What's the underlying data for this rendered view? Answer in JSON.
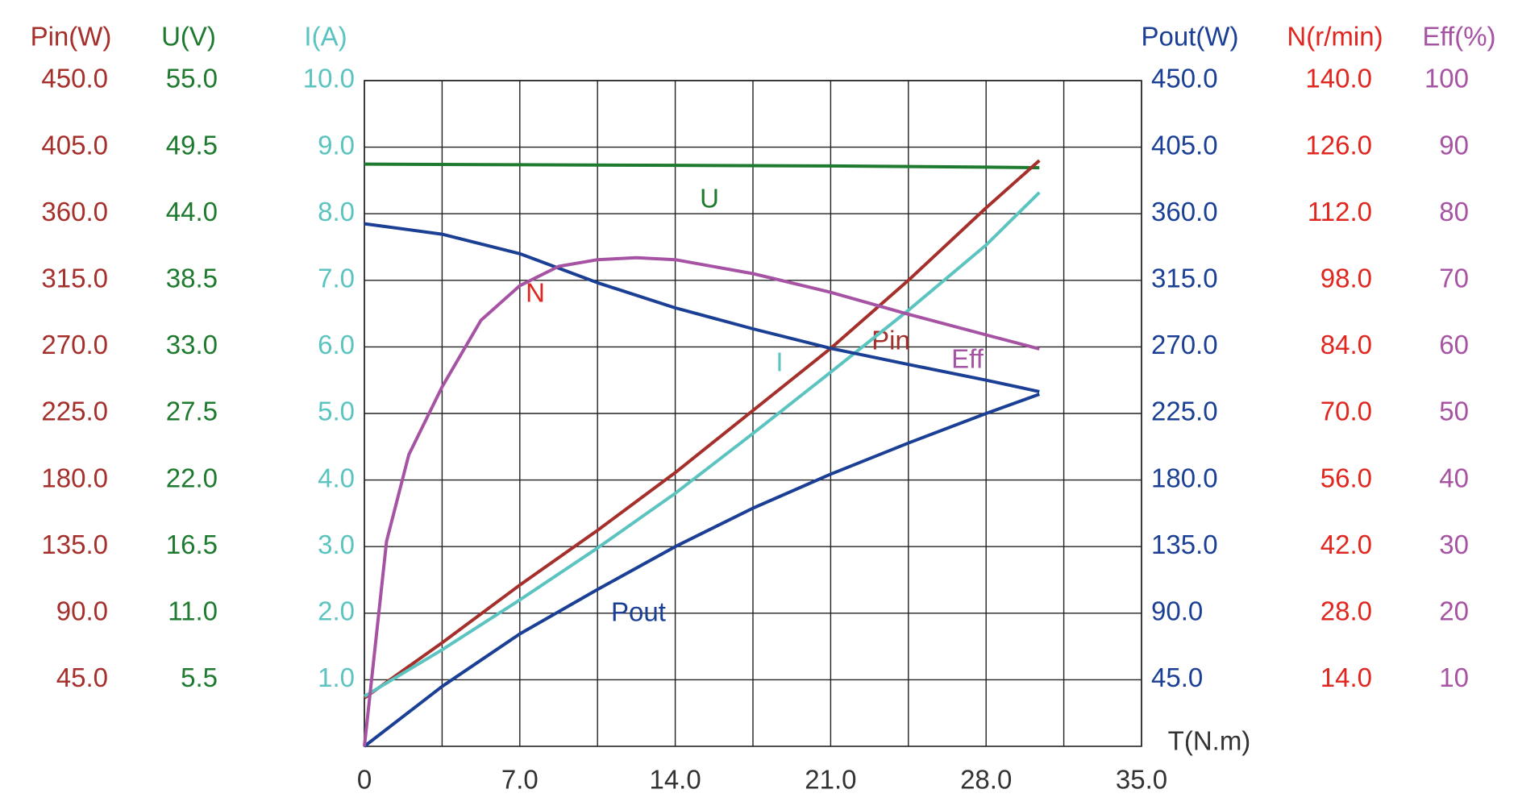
{
  "chart_data": {
    "type": "line",
    "x_label": "T(N.m)",
    "xlim": [
      0,
      35
    ],
    "xticks": [
      0,
      {
        "value": 7,
        "label": "7.0"
      },
      {
        "value": 14,
        "label": "14.0"
      },
      {
        "value": 21,
        "label": "21.0"
      },
      {
        "value": 28,
        "label": "28.0"
      },
      {
        "value": 35,
        "label": "35.0"
      }
    ],
    "minor_xticks": [
      3.5,
      10.5,
      17.5,
      24.5,
      31.5
    ],
    "grid": true,
    "axes": [
      {
        "label": "Pin(W)",
        "side": "left",
        "color": "#a52f2b",
        "lim": [
          0,
          450
        ],
        "ticks": [
          {
            "value": 45,
            "label": "45.0"
          },
          {
            "value": 90,
            "label": "90.0"
          },
          {
            "value": 135,
            "label": "135.0"
          },
          {
            "value": 180,
            "label": "180.0"
          },
          {
            "value": 225,
            "label": "225.0"
          },
          {
            "value": 270,
            "label": "270.0"
          },
          {
            "value": 315,
            "label": "315.0"
          },
          {
            "value": 360,
            "label": "360.0"
          },
          {
            "value": 405,
            "label": "405.0"
          },
          {
            "value": 450,
            "label": "450.0"
          }
        ]
      },
      {
        "label": "U(V)",
        "side": "left",
        "color": "#1e7a2e",
        "lim": [
          0,
          55
        ],
        "ticks": [
          5.5,
          {
            "value": 11,
            "label": "11.0"
          },
          16.5,
          {
            "value": 22,
            "label": "22.0"
          },
          27.5,
          {
            "value": 33,
            "label": "33.0"
          },
          38.5,
          {
            "value": 44,
            "label": "44.0"
          },
          49.5,
          {
            "value": 55,
            "label": "55.0"
          }
        ]
      },
      {
        "label": "I(A)",
        "side": "left",
        "color": "#5bc4c0",
        "lim": [
          0,
          10
        ],
        "ticks": [
          {
            "value": 1,
            "label": "1.0"
          },
          {
            "value": 2,
            "label": "2.0"
          },
          {
            "value": 3,
            "label": "3.0"
          },
          {
            "value": 4,
            "label": "4.0"
          },
          {
            "value": 5,
            "label": "5.0"
          },
          {
            "value": 6,
            "label": "6.0"
          },
          {
            "value": 7,
            "label": "7.0"
          },
          {
            "value": 8,
            "label": "8.0"
          },
          {
            "value": 9,
            "label": "9.0"
          },
          {
            "value": 10,
            "label": "10.0"
          }
        ]
      },
      {
        "label": "Pout(W)",
        "side": "right",
        "color": "#1a3f94",
        "lim": [
          0,
          450
        ],
        "ticks": [
          {
            "value": 45,
            "label": "45.0"
          },
          {
            "value": 90,
            "label": "90.0"
          },
          {
            "value": 135,
            "label": "135.0"
          },
          {
            "value": 180,
            "label": "180.0"
          },
          {
            "value": 225,
            "label": "225.0"
          },
          {
            "value": 270,
            "label": "270.0"
          },
          {
            "value": 315,
            "label": "315.0"
          },
          {
            "value": 360,
            "label": "360.0"
          },
          {
            "value": 405,
            "label": "405.0"
          },
          {
            "value": 450,
            "label": "450.0"
          }
        ]
      },
      {
        "label": "N(r/min)",
        "side": "right",
        "color": "#e0261f",
        "lim": [
          0,
          140
        ],
        "ticks": [
          {
            "value": 14,
            "label": "14.0"
          },
          {
            "value": 28,
            "label": "28.0"
          },
          {
            "value": 42,
            "label": "42.0"
          },
          {
            "value": 56,
            "label": "56.0"
          },
          {
            "value": 70,
            "label": "70.0"
          },
          {
            "value": 84,
            "label": "84.0"
          },
          {
            "value": 98,
            "label": "98.0"
          },
          {
            "value": 112,
            "label": "112.0"
          },
          {
            "value": 126,
            "label": "126.0"
          },
          {
            "value": 140,
            "label": "140.0"
          }
        ]
      },
      {
        "label": "Eff(%)",
        "side": "right",
        "color": "#a553a2",
        "lim": [
          0,
          100
        ],
        "ticks": [
          10,
          20,
          30,
          40,
          50,
          60,
          70,
          80,
          90,
          100
        ]
      }
    ],
    "series": [
      {
        "name": "U",
        "axis": 1,
        "color": "#1e7a2e",
        "label_color": "#1e7a2e",
        "x": [
          0,
          7,
          14,
          21,
          28,
          30.4
        ],
        "values": [
          48.1,
          48.05,
          48.0,
          47.95,
          47.85,
          47.8
        ]
      },
      {
        "name": "Pin",
        "axis": 0,
        "color": "#a52f2b",
        "label_color": "#a52f2b",
        "x": [
          0,
          3.5,
          7,
          10.5,
          14,
          17.5,
          21,
          24.5,
          28,
          30.4
        ],
        "values": [
          32.7,
          70,
          109,
          146,
          185,
          227,
          269,
          315,
          364,
          396
        ]
      },
      {
        "name": "I",
        "axis": 2,
        "color": "#5bc4c0",
        "label_color": "#5bc4c0",
        "x": [
          0,
          3.5,
          7,
          10.5,
          14,
          17.5,
          21,
          24.5,
          28,
          30.4
        ],
        "values": [
          0.75,
          1.45,
          2.2,
          2.98,
          3.8,
          4.7,
          5.62,
          6.55,
          7.53,
          8.32
        ]
      },
      {
        "name": "N",
        "axis": 4,
        "color": "#1a3f94",
        "label_color": "#e0261f",
        "x": [
          0,
          3.5,
          7,
          10.5,
          14,
          17.5,
          21,
          24.5,
          28,
          30.4
        ],
        "values": [
          109.9,
          107.7,
          103.6,
          97.5,
          92.2,
          87.8,
          83.7,
          80.3,
          77,
          74.6
        ]
      },
      {
        "name": "Pout",
        "axis": 3,
        "color": "#1a3f94",
        "label_color": "#1a3f94",
        "x": [
          0,
          3.5,
          7,
          10.5,
          14,
          17.5,
          21,
          24.5,
          28,
          30.4
        ],
        "values": [
          0,
          40.5,
          76,
          106,
          135,
          161,
          184,
          205,
          225,
          238
        ]
      },
      {
        "name": "Eff",
        "axis": 5,
        "color": "#a553a2",
        "label_color": "#a553a2",
        "x": [
          0,
          1,
          2,
          3.5,
          5.25,
          7,
          8.75,
          10.5,
          12.25,
          14,
          17.5,
          21,
          24.5,
          28,
          30.4
        ],
        "values": [
          0,
          30.8,
          43.8,
          54,
          64,
          69.2,
          72.1,
          73.1,
          73.4,
          73.1,
          71,
          68.2,
          64.9,
          61.8,
          59.7
        ]
      }
    ]
  }
}
